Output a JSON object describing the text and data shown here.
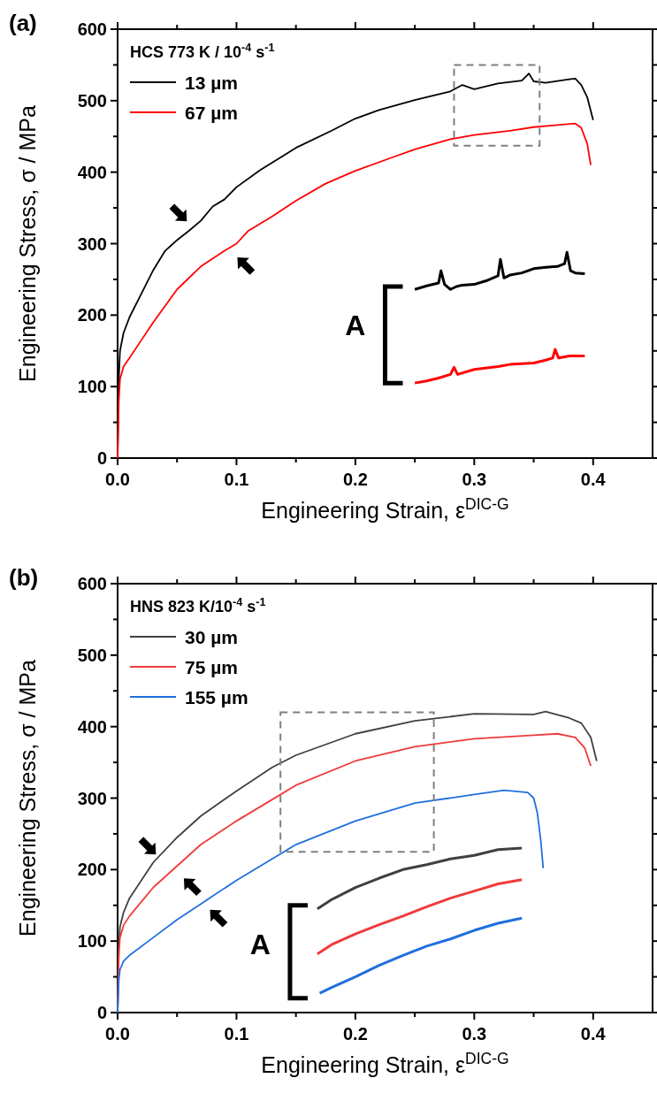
{
  "chart_data": [
    {
      "type": "line",
      "title": "(a)",
      "xlabel": "Engineering Strain, ε$^{DIC-G}$",
      "ylabel": "Engineering Stress, σ / MPa",
      "legend_title": "HCS 773 K / 10$^{-4}$ s$^{-1}$",
      "legend": "top left",
      "marker": "none",
      "line_style": "solid",
      "grid": false,
      "annotations": [
        "A"
      ],
      "xlim": [
        0,
        0.45
      ],
      "ylim": [
        0,
        600
      ],
      "xticks": [
        {
          "value": 0,
          "label": "0.0"
        },
        {
          "value": 0.05,
          "label": null
        },
        0.1,
        {
          "value": 0.15,
          "label": null
        },
        0.2,
        {
          "value": 0.25,
          "label": null
        },
        0.3,
        {
          "value": 0.35,
          "label": null
        },
        0.4
      ],
      "yticks": [
        0,
        {
          "value": 50,
          "label": null
        },
        100,
        {
          "value": 150,
          "label": null
        },
        200,
        {
          "value": 250,
          "label": null
        },
        300,
        {
          "value": 350,
          "label": null
        },
        400,
        {
          "value": 450,
          "label": null
        },
        500,
        {
          "value": 550,
          "label": null
        },
        600
      ],
      "series": [
        {
          "name": "13 µm",
          "color": "#000000",
          "x": [
            0,
            0.001,
            0.002,
            0.005,
            0.01,
            0.02,
            0.03,
            0.04,
            0.05,
            0.06,
            0.07,
            0.08,
            0.09,
            0.1,
            0.12,
            0.15,
            0.18,
            0.2,
            0.22,
            0.25,
            0.28,
            0.29,
            0.3,
            0.32,
            0.34,
            0.346,
            0.35,
            0.36,
            0.38,
            0.385,
            0.39,
            0.395,
            0.4
          ],
          "values": [
            0,
            110,
            150,
            175,
            197,
            230,
            263,
            290,
            305,
            318,
            332,
            352,
            362,
            379,
            403,
            434,
            458,
            475,
            487,
            501,
            513,
            522,
            516,
            524,
            528,
            538,
            527,
            525,
            530,
            531,
            522,
            505,
            473
          ]
        },
        {
          "name": "67 µm",
          "color": "#ff0000",
          "x": [
            0,
            0.001,
            0.002,
            0.005,
            0.01,
            0.02,
            0.03,
            0.05,
            0.07,
            0.09,
            0.1,
            0.11,
            0.13,
            0.15,
            0.175,
            0.2,
            0.23,
            0.25,
            0.28,
            0.3,
            0.33,
            0.35,
            0.37,
            0.385,
            0.39,
            0.395,
            0.398
          ],
          "values": [
            0,
            80,
            110,
            128,
            140,
            165,
            190,
            236,
            268,
            290,
            300,
            318,
            338,
            360,
            384,
            402,
            420,
            432,
            446,
            452,
            458,
            463,
            466,
            468,
            462,
            440,
            410
          ]
        },
        {
          "color": "#000000",
          "x": [
            0.25,
            0.26,
            0.27,
            0.272,
            0.275,
            0.28,
            0.285,
            0.29,
            0.3,
            0.31,
            0.32,
            0.322,
            0.325,
            0.33,
            0.34,
            0.35,
            0.36,
            0.37,
            0.376,
            0.378,
            0.381,
            0.385,
            0.393
          ],
          "values": [
            236,
            241,
            245,
            262,
            243,
            236,
            240,
            242,
            243,
            248,
            255,
            278,
            252,
            256,
            259,
            265,
            267,
            268,
            272,
            288,
            262,
            259,
            258
          ]
        },
        {
          "color": "#ff0000",
          "x": [
            0.25,
            0.26,
            0.27,
            0.28,
            0.283,
            0.286,
            0.3,
            0.32,
            0.33,
            0.35,
            0.36,
            0.366,
            0.368,
            0.371,
            0.38,
            0.393
          ],
          "values": [
            105,
            108,
            112,
            117,
            127,
            117,
            124,
            128,
            131,
            133,
            137,
            140,
            152,
            140,
            143,
            143
          ]
        }
      ]
    },
    {
      "type": "line",
      "title": "(b)",
      "xlabel": "Engineering Strain, ε$^{DIC-G}$",
      "ylabel": "Engineering Stress, σ / MPa",
      "legend_title": "HNS 823 K/10$^{-4}$ s$^{-1}$",
      "legend": "top left",
      "marker": "none",
      "line_style": "solid",
      "grid": false,
      "annotations": [
        "A"
      ],
      "xlim": [
        0,
        0.45
      ],
      "ylim": [
        0,
        600
      ],
      "xticks": [
        {
          "value": 0,
          "label": "0.0"
        },
        {
          "value": 0.05,
          "label": null
        },
        0.1,
        {
          "value": 0.15,
          "label": null
        },
        0.2,
        {
          "value": 0.25,
          "label": null
        },
        0.3,
        {
          "value": 0.35,
          "label": null
        },
        0.4
      ],
      "yticks": [
        0,
        {
          "value": 50,
          "label": null
        },
        100,
        {
          "value": 150,
          "label": null
        },
        200,
        {
          "value": 250,
          "label": null
        },
        300,
        {
          "value": 350,
          "label": null
        },
        400,
        {
          "value": 450,
          "label": null
        },
        500,
        {
          "value": 550,
          "label": null
        },
        600
      ],
      "series": [
        {
          "name": "30 µm",
          "color": "#404040",
          "x": [
            0,
            0.001,
            0.002,
            0.005,
            0.01,
            0.02,
            0.03,
            0.05,
            0.07,
            0.1,
            0.13,
            0.15,
            0.2,
            0.25,
            0.3,
            0.35,
            0.36,
            0.38,
            0.39,
            0.398,
            0.403
          ],
          "values": [
            0,
            90,
            120,
            140,
            160,
            185,
            210,
            245,
            275,
            310,
            343,
            360,
            390,
            408,
            418,
            417,
            421,
            412,
            405,
            385,
            352
          ]
        },
        {
          "name": "75 µm",
          "color": "#ef3b3b",
          "x": [
            0,
            0.001,
            0.002,
            0.005,
            0.01,
            0.03,
            0.05,
            0.07,
            0.1,
            0.13,
            0.15,
            0.2,
            0.25,
            0.3,
            0.35,
            0.37,
            0.385,
            0.393,
            0.398
          ],
          "values": [
            0,
            80,
            105,
            122,
            135,
            175,
            205,
            235,
            268,
            298,
            318,
            352,
            372,
            383,
            388,
            390,
            385,
            370,
            345
          ]
        },
        {
          "name": "155 µm",
          "color": "#1f6fdf",
          "x": [
            0,
            0.001,
            0.002,
            0.005,
            0.01,
            0.03,
            0.05,
            0.07,
            0.1,
            0.13,
            0.15,
            0.2,
            0.25,
            0.3,
            0.325,
            0.345,
            0.35,
            0.353,
            0.356,
            0.358
          ],
          "values": [
            0,
            45,
            60,
            72,
            80,
            105,
            130,
            152,
            185,
            215,
            235,
            268,
            293,
            305,
            311,
            308,
            300,
            280,
            240,
            202
          ]
        },
        {
          "color": "#404040",
          "x": [
            0.168,
            0.18,
            0.2,
            0.22,
            0.24,
            0.26,
            0.28,
            0.3,
            0.32,
            0.34
          ],
          "values": [
            145,
            158,
            175,
            188,
            200,
            207,
            215,
            220,
            228,
            230
          ]
        },
        {
          "color": "#ef3b3b",
          "x": [
            0.168,
            0.18,
            0.2,
            0.22,
            0.24,
            0.26,
            0.28,
            0.3,
            0.32,
            0.34
          ],
          "values": [
            82,
            95,
            110,
            123,
            135,
            148,
            160,
            170,
            180,
            186
          ]
        },
        {
          "color": "#1f6fdf",
          "x": [
            0.17,
            0.18,
            0.2,
            0.22,
            0.24,
            0.26,
            0.28,
            0.3,
            0.32,
            0.34
          ],
          "values": [
            27,
            35,
            50,
            66,
            80,
            93,
            103,
            115,
            125,
            132
          ]
        }
      ]
    }
  ]
}
